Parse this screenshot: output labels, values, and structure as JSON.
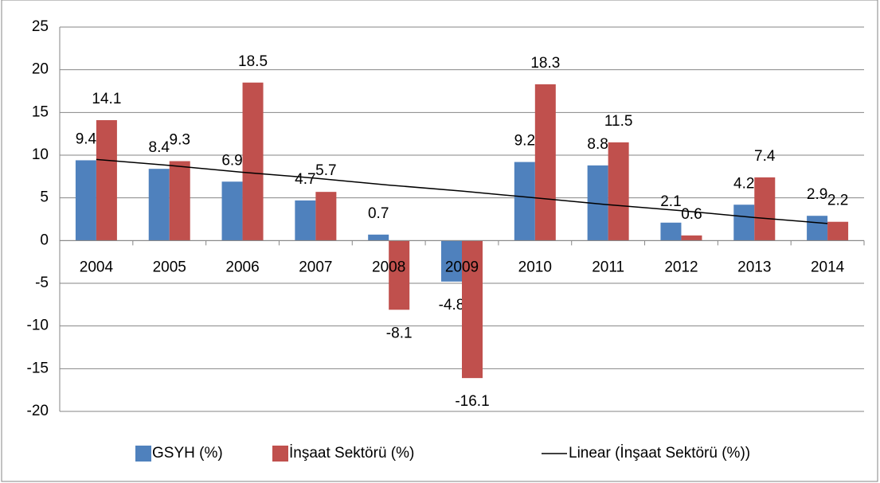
{
  "chart_data": {
    "type": "bar",
    "categories": [
      "2004",
      "2005",
      "2006",
      "2007",
      "2008",
      "2009",
      "2010",
      "2011",
      "2012",
      "2013",
      "2014"
    ],
    "series": [
      {
        "name": "GSYH (%)",
        "color": "#4f81bd",
        "values": [
          9.4,
          8.4,
          6.9,
          4.7,
          0.7,
          -4.8,
          9.2,
          8.8,
          2.1,
          4.2,
          2.9
        ]
      },
      {
        "name": "İnşaat Sektörü (%)",
        "color": "#c0504d",
        "values": [
          14.1,
          9.3,
          18.5,
          5.7,
          -8.1,
          -16.1,
          18.3,
          11.5,
          0.6,
          7.4,
          2.2
        ]
      },
      {
        "name": "Linear (İnşaat Sektörü (%))",
        "color": "#000000",
        "type": "line",
        "values": [
          9.5,
          8.8,
          8.0,
          7.3,
          6.5,
          5.8,
          5.0,
          4.2,
          3.5,
          2.7,
          2.0
        ]
      }
    ],
    "ylim": [
      -20,
      25
    ],
    "yticks": [
      -20,
      -15,
      -10,
      -5,
      0,
      5,
      10,
      15,
      20,
      25
    ],
    "grid": true,
    "legend": "bottom"
  }
}
